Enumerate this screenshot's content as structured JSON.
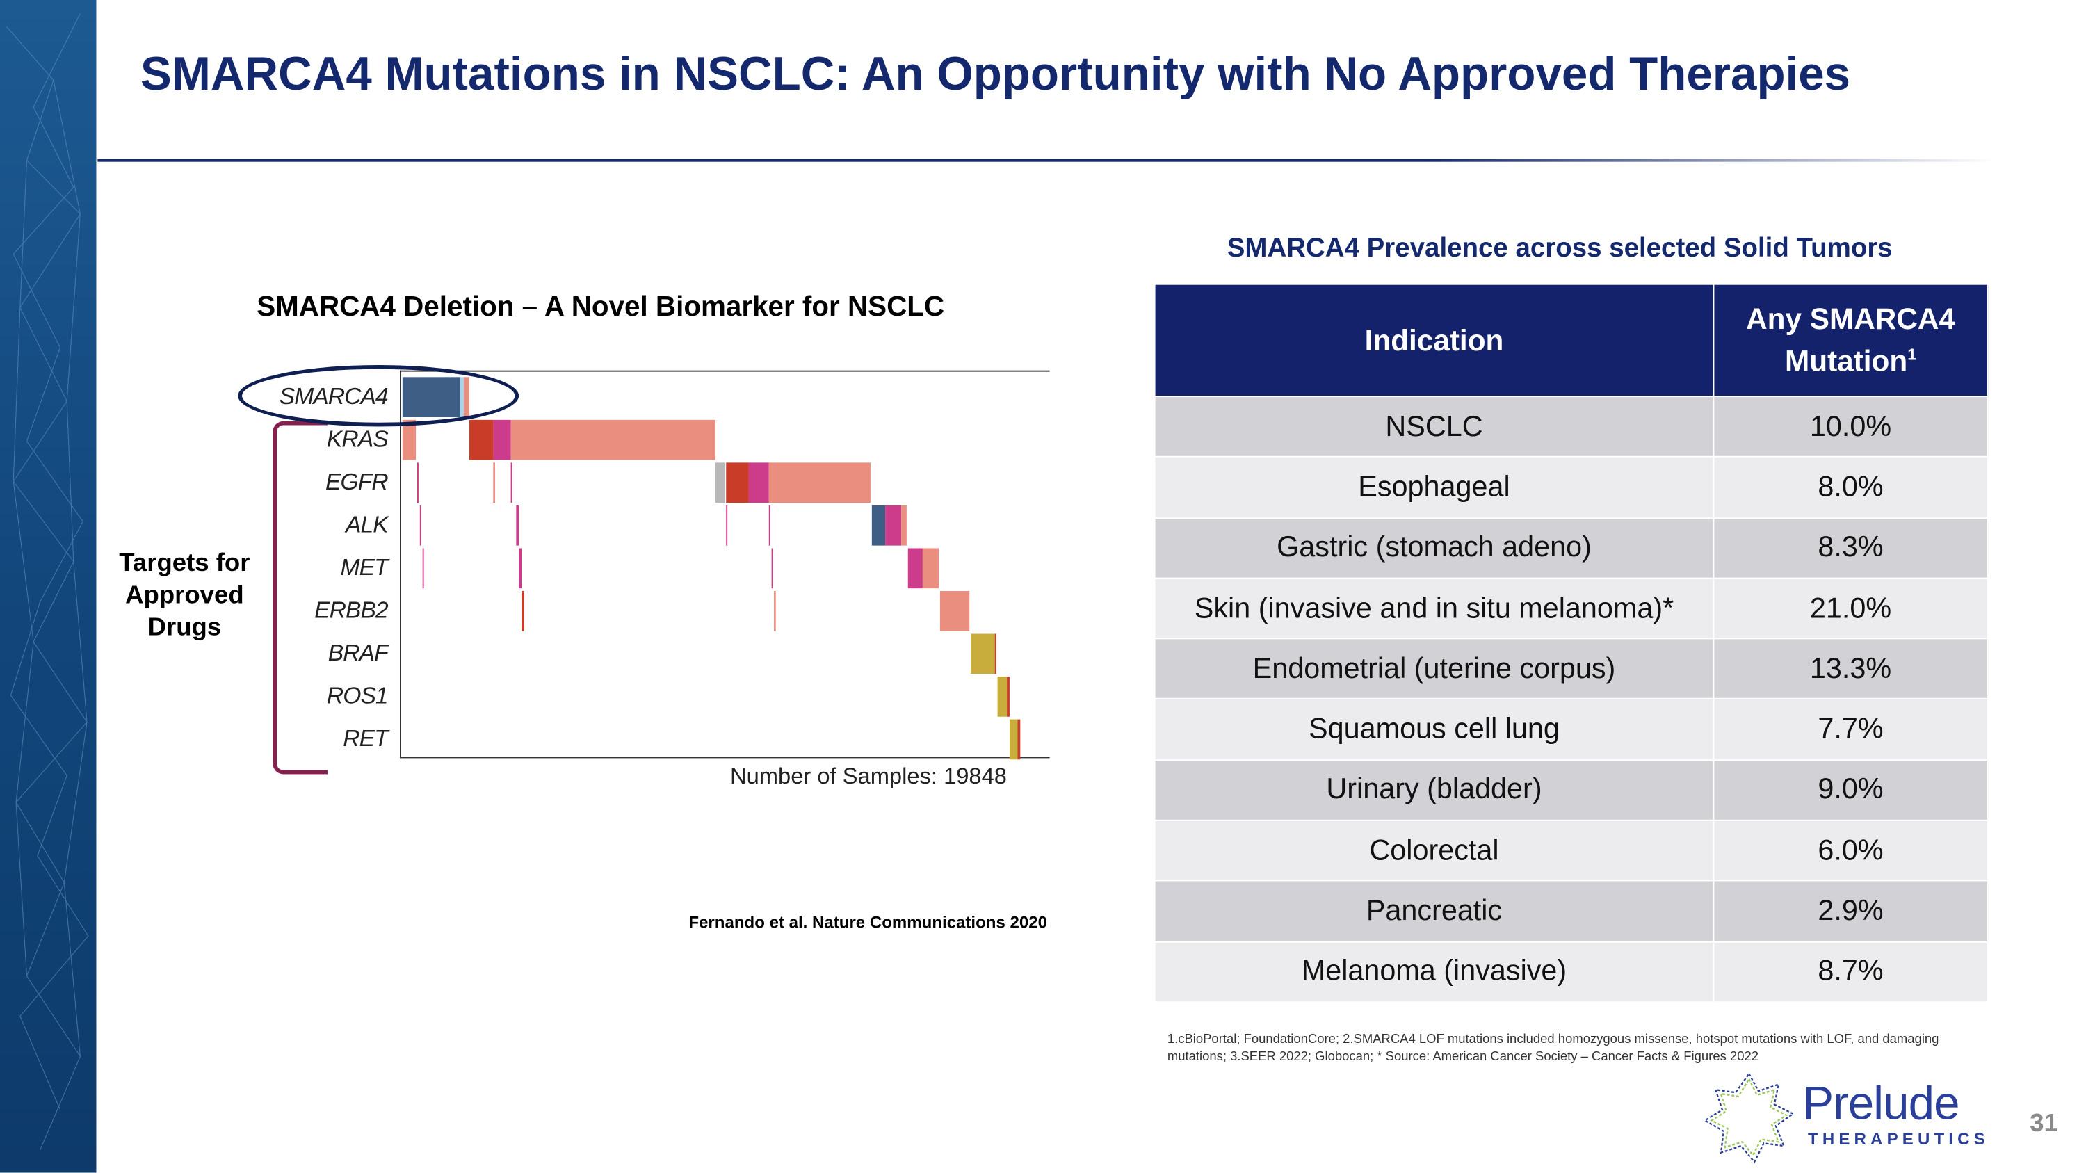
{
  "slide": {
    "title": "SMARCA4 Mutations in NSCLC: An Opportunity with No Approved Therapies",
    "page_number": "31",
    "brand_color": "#14286e"
  },
  "left_panel": {
    "chart_title": "SMARCA4 Deletion – A Novel Biomarker for NSCLC",
    "bracket_label": "Targets for Approved Drugs",
    "citation": "Fernando et al. Nature Communications 2020"
  },
  "chart_data": {
    "type": "heatmap",
    "title": "SMARCA4 Deletion – A Novel Biomarker for NSCLC",
    "genes": [
      "SMARCA4",
      "KRAS",
      "EGFR",
      "ALK",
      "MET",
      "ERBB2",
      "BRAF",
      "ROS1",
      "RET"
    ],
    "xlabel": "Number of Samples: 19848",
    "highlighted_gene": "SMARCA4",
    "colors": {
      "deletion": "#3f5e86",
      "light": "#a9d3ea",
      "salmon": "#ea8f7f",
      "red": "#c83c28",
      "magenta": "#cc3c8a",
      "gray": "#b8b8b8",
      "gold": "#c9ad3c"
    },
    "segments_fraction_of_samples": [
      {
        "gene": "SMARCA4",
        "start": 0.002,
        "end": 0.09,
        "color": "deletion"
      },
      {
        "gene": "SMARCA4",
        "start": 0.09,
        "end": 0.097,
        "color": "light"
      },
      {
        "gene": "SMARCA4",
        "start": 0.097,
        "end": 0.105,
        "color": "salmon"
      },
      {
        "gene": "KRAS",
        "start": 0.002,
        "end": 0.023,
        "color": "salmon"
      },
      {
        "gene": "KRAS",
        "start": 0.105,
        "end": 0.142,
        "color": "red"
      },
      {
        "gene": "KRAS",
        "start": 0.142,
        "end": 0.169,
        "color": "magenta"
      },
      {
        "gene": "KRAS",
        "start": 0.169,
        "end": 0.485,
        "color": "salmon"
      },
      {
        "gene": "EGFR",
        "start": 0.485,
        "end": 0.5,
        "color": "gray"
      },
      {
        "gene": "EGFR",
        "start": 0.5,
        "end": 0.537,
        "color": "red"
      },
      {
        "gene": "EGFR",
        "start": 0.537,
        "end": 0.567,
        "color": "magenta"
      },
      {
        "gene": "EGFR",
        "start": 0.567,
        "end": 0.724,
        "color": "salmon"
      },
      {
        "gene": "EGFR",
        "start": 0.024,
        "end": 0.027,
        "color": "magenta"
      },
      {
        "gene": "EGFR",
        "start": 0.142,
        "end": 0.145,
        "color": "red"
      },
      {
        "gene": "EGFR",
        "start": 0.169,
        "end": 0.172,
        "color": "magenta"
      },
      {
        "gene": "ALK",
        "start": 0.726,
        "end": 0.746,
        "color": "deletion"
      },
      {
        "gene": "ALK",
        "start": 0.746,
        "end": 0.772,
        "color": "magenta"
      },
      {
        "gene": "ALK",
        "start": 0.772,
        "end": 0.779,
        "color": "salmon"
      },
      {
        "gene": "ALK",
        "start": 0.028,
        "end": 0.031,
        "color": "magenta"
      },
      {
        "gene": "ALK",
        "start": 0.178,
        "end": 0.181,
        "color": "magenta"
      },
      {
        "gene": "ALK",
        "start": 0.5,
        "end": 0.503,
        "color": "magenta"
      },
      {
        "gene": "ALK",
        "start": 0.567,
        "end": 0.57,
        "color": "magenta"
      },
      {
        "gene": "MET",
        "start": 0.781,
        "end": 0.805,
        "color": "magenta"
      },
      {
        "gene": "MET",
        "start": 0.805,
        "end": 0.829,
        "color": "salmon"
      },
      {
        "gene": "MET",
        "start": 0.032,
        "end": 0.035,
        "color": "magenta"
      },
      {
        "gene": "MET",
        "start": 0.182,
        "end": 0.185,
        "color": "magenta"
      },
      {
        "gene": "MET",
        "start": 0.571,
        "end": 0.574,
        "color": "magenta"
      },
      {
        "gene": "ERBB2",
        "start": 0.83,
        "end": 0.876,
        "color": "salmon"
      },
      {
        "gene": "ERBB2",
        "start": 0.186,
        "end": 0.189,
        "color": "red"
      },
      {
        "gene": "ERBB2",
        "start": 0.575,
        "end": 0.578,
        "color": "red"
      },
      {
        "gene": "BRAF",
        "start": 0.878,
        "end": 0.916,
        "color": "gold"
      },
      {
        "gene": "BRAF",
        "start": 0.916,
        "end": 0.918,
        "color": "red"
      },
      {
        "gene": "ROS1",
        "start": 0.919,
        "end": 0.934,
        "color": "gold"
      },
      {
        "gene": "ROS1",
        "start": 0.934,
        "end": 0.938,
        "color": "red"
      },
      {
        "gene": "RET",
        "start": 0.939,
        "end": 0.951,
        "color": "gold"
      },
      {
        "gene": "RET",
        "start": 0.951,
        "end": 0.954,
        "color": "red"
      }
    ]
  },
  "table": {
    "title": "SMARCA4 Prevalence across selected Solid Tumors",
    "headers": [
      "Indication",
      "Any SMARCA4 Mutation",
      "1"
    ],
    "rows": [
      {
        "indication": "NSCLC",
        "value": "10.0%"
      },
      {
        "indication": "Esophageal",
        "value": "8.0%"
      },
      {
        "indication": "Gastric (stomach adeno)",
        "value": "8.3%"
      },
      {
        "indication": "Skin (invasive and in situ melanoma)*",
        "value": "21.0%"
      },
      {
        "indication": "Endometrial (uterine corpus)",
        "value": "13.3%"
      },
      {
        "indication": "Squamous cell lung",
        "value": "7.7%"
      },
      {
        "indication": "Urinary (bladder)",
        "value": "9.0%"
      },
      {
        "indication": "Colorectal",
        "value": "6.0%"
      },
      {
        "indication": "Pancreatic",
        "value": "2.9%"
      },
      {
        "indication": "Melanoma (invasive)",
        "value": "8.7%"
      }
    ],
    "header_color": "#13226b"
  },
  "footnote": "1.cBioPortal; FoundationCore;  2.SMARCA4 LOF mutations included homozygous missense, hotspot mutations with LOF, and damaging mutations;  3.SEER 2022; Globocan;  * Source: American Cancer Society – Cancer Facts & Figures 2022",
  "logo": {
    "name": "Prelude",
    "subtitle": "THERAPEUTICS",
    "icon": "dna-ring-icon"
  }
}
